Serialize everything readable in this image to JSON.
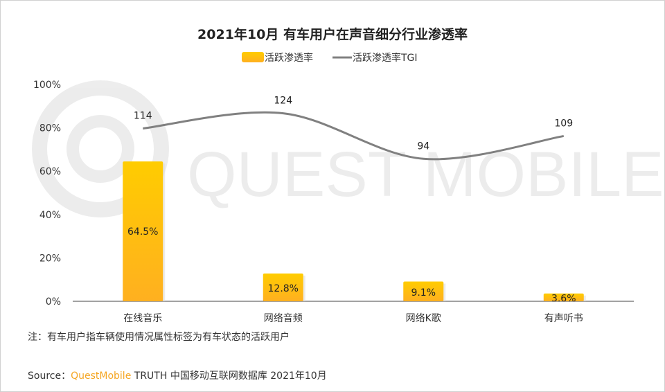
{
  "chart_data": {
    "type": "bar+line",
    "title": "2021年10月 有车用户在声音细分行业渗透率",
    "categories": [
      "在线音乐",
      "网络音频",
      "网络K歌",
      "有声听书"
    ],
    "series": [
      {
        "name": "活跃渗透率",
        "type": "bar",
        "values": [
          64.5,
          12.8,
          9.1,
          3.6
        ],
        "labels": [
          "64.5%",
          "12.8%",
          "9.1%",
          "3.6%"
        ],
        "color": "#ffc107"
      },
      {
        "name": "活跃渗透率TGI",
        "type": "line",
        "values": [
          114,
          124,
          94,
          109
        ],
        "labels": [
          "114",
          "124",
          "94",
          "109"
        ],
        "color": "#808080",
        "smooth": true,
        "axis": "secondary-hidden"
      }
    ],
    "yticks": [
      "0%",
      "20%",
      "40%",
      "60%",
      "80%",
      "100%"
    ],
    "ylim": [
      0,
      100
    ],
    "y2lim": [
      0,
      143
    ],
    "grid": false,
    "legend": "top-center"
  },
  "watermark": "QUEST MOBILE",
  "note": "注：有车用户指车辆使用情况属性标签为有车状态的活跃用户",
  "source": {
    "prefix": "Source：",
    "brand": "QuestMobile",
    "rest": " TRUTH 中国移动互联网数据库 2021年10月"
  }
}
